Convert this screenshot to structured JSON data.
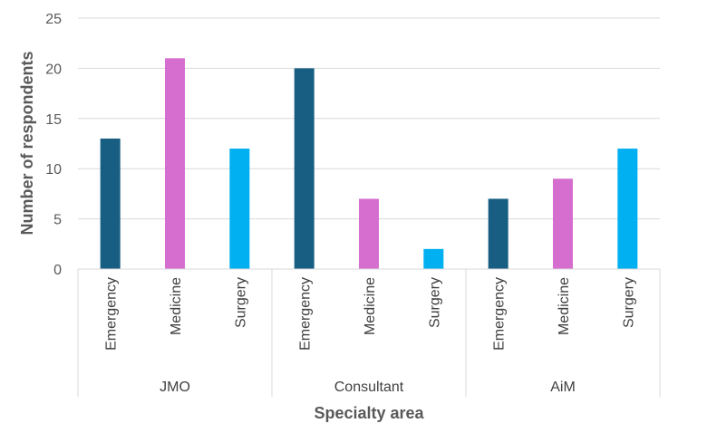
{
  "chart_data": {
    "type": "bar",
    "xlabel": "Specialty area",
    "ylabel": "Number of respondents",
    "ylim": [
      0,
      25
    ],
    "yticks": [
      0,
      5,
      10,
      15,
      20,
      25
    ],
    "grid": true,
    "groups": [
      {
        "name": "JMO",
        "bars": [
          {
            "category": "Emergency",
            "value": 13,
            "color": "#175e82"
          },
          {
            "category": "Medicine",
            "value": 21,
            "color": "#d66ed0"
          },
          {
            "category": "Surgery",
            "value": 12,
            "color": "#00b0f0"
          }
        ]
      },
      {
        "name": "Consultant",
        "bars": [
          {
            "category": "Emergency",
            "value": 20,
            "color": "#175e82"
          },
          {
            "category": "Medicine",
            "value": 7,
            "color": "#d66ed0"
          },
          {
            "category": "Surgery",
            "value": 2,
            "color": "#00b0f0"
          }
        ]
      },
      {
        "name": "AiM",
        "bars": [
          {
            "category": "Emergency",
            "value": 7,
            "color": "#175e82"
          },
          {
            "category": "Medicine",
            "value": 9,
            "color": "#d66ed0"
          },
          {
            "category": "Surgery",
            "value": 12,
            "color": "#00b0f0"
          }
        ]
      }
    ]
  }
}
